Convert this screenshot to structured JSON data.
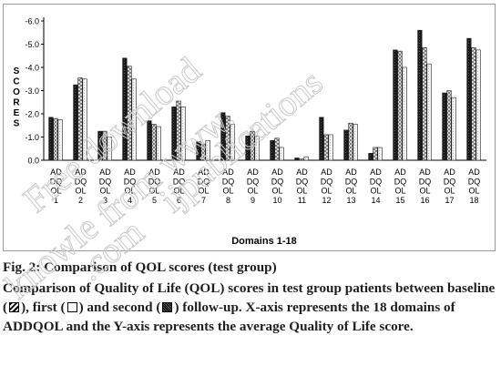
{
  "chart_data": {
    "type": "bar",
    "xlabel": "Domains 1-18",
    "ylabel": "SCORES",
    "ylim": [
      0,
      -6.0
    ],
    "yticks": [
      "0.0",
      "-1.0",
      "-2.0",
      "-3.0",
      "-4.0",
      "-5.0",
      "-6.0"
    ],
    "grid": false,
    "categories": [
      "AD DQ OL 1",
      "AD DQ OL 2",
      "AD DQ OL 3",
      "AD DQ OL 4",
      "AD DQ OL 5",
      "AD DQ OL 6",
      "AD DQ OL 7",
      "AD DQ OL 8",
      "AD DQ OL 9",
      "AD DQ OL 10",
      "AD DQ OL 11",
      "AD DQ OL 12",
      "AD DQ OL 13",
      "AD DQ OL 14",
      "AD DQ OL 15",
      "AD DQ OL 16",
      "AD DQ OL 17",
      "AD DQ OL 18"
    ],
    "category_lines": [
      [
        "AD",
        "DQ",
        "OL",
        "1"
      ],
      [
        "AD",
        "DQ",
        "OL",
        "2"
      ],
      [
        "AD",
        "DQ",
        "OL",
        "3"
      ],
      [
        "AD",
        "DQ",
        "OL",
        "4"
      ],
      [
        "AD",
        "DQ",
        "OL",
        "5"
      ],
      [
        "AD",
        "DQ",
        "OL",
        "6"
      ],
      [
        "AD",
        "DQ",
        "OL",
        "7"
      ],
      [
        "AD",
        "DQ",
        "OL",
        "8"
      ],
      [
        "AD",
        "DQ",
        "OL",
        "9"
      ],
      [
        "AD",
        "DQ",
        "OL",
        "10"
      ],
      [
        "AD",
        "DQ",
        "OL",
        "11"
      ],
      [
        "AD",
        "DQ",
        "OL",
        "12"
      ],
      [
        "AD",
        "DQ",
        "OL",
        "13"
      ],
      [
        "AD",
        "DQ",
        "OL",
        "14"
      ],
      [
        "AD",
        "DQ",
        "OL",
        "15"
      ],
      [
        "AD",
        "DQ",
        "OL",
        "16"
      ],
      [
        "AD",
        "DQ",
        "OL",
        "17"
      ],
      [
        "AD",
        "DQ",
        "OL",
        "18"
      ]
    ],
    "series": [
      {
        "name": "baseline",
        "values": [
          -1.85,
          -3.25,
          -1.25,
          -4.4,
          -1.7,
          -2.3,
          -0.8,
          -2.05,
          -1.05,
          -0.85,
          -0.1,
          -1.85,
          -1.3,
          -0.3,
          -4.75,
          -5.6,
          -2.9,
          -5.25
        ]
      },
      {
        "name": "first",
        "values": [
          -1.8,
          -3.55,
          -1.25,
          -4.05,
          -1.55,
          -2.55,
          -0.7,
          -1.9,
          -1.25,
          -0.95,
          -0.05,
          -1.1,
          -1.6,
          -0.55,
          -4.7,
          -4.85,
          -3.0,
          -4.85
        ]
      },
      {
        "name": "second",
        "values": [
          -1.75,
          -3.5,
          -1.0,
          -3.5,
          -1.45,
          -2.3,
          -0.85,
          -1.55,
          -1.05,
          -0.55,
          -0.15,
          -1.1,
          -1.55,
          -0.55,
          -4.0,
          -4.15,
          -2.7,
          -4.75
        ]
      }
    ],
    "colors": {
      "baseline": "#111111",
      "first": "#ececec",
      "second": "#8a8a8a"
    }
  },
  "caption": {
    "figure_label": "Fig. 2: Comparison of QOL scores (test group)",
    "text_part1": "Comparison of Quality of Life (QOL) scores in test group patients between baseline (",
    "text_part2": "), first (",
    "text_part3": ") and second (",
    "text_part4": ") follow-up. X-axis represents the 18 domains of ADDQOL and the Y-axis represents the average Quality of Life score."
  },
  "watermark": {
    "line1": "Free download",
    "line2": "from www.",
    "line3": "ijpublications",
    "line4": "knowle",
    "line5": ".com"
  }
}
